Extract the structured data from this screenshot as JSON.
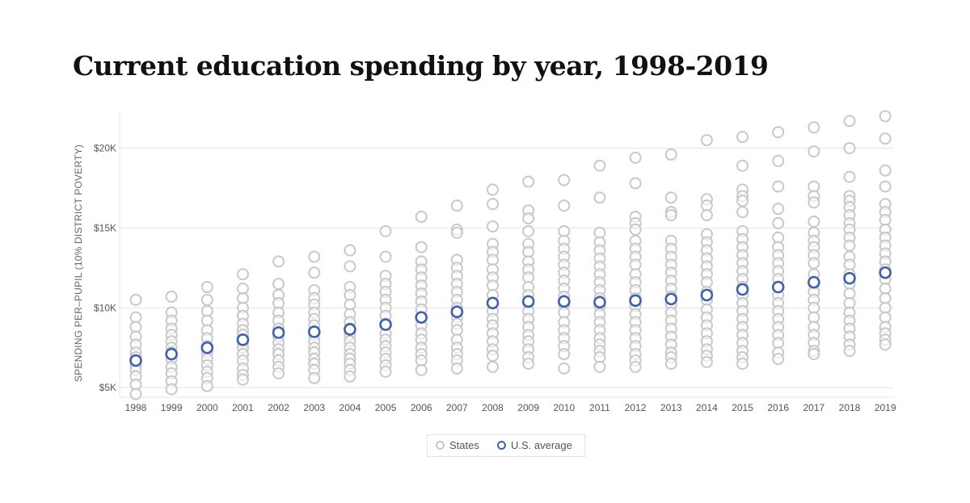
{
  "chart_data": {
    "type": "scatter",
    "title": "Current education spending by year, 1998-2019",
    "ylabel": "SPENDING PER–PUPIL (10% DISTRICT POVERTY)",
    "xlabel": "",
    "x": [
      "1998",
      "1999",
      "2000",
      "2001",
      "2002",
      "2003",
      "2004",
      "2005",
      "2006",
      "2007",
      "2008",
      "2009",
      "2010",
      "2011",
      "2012",
      "2013",
      "2014",
      "2015",
      "2016",
      "2017",
      "2018",
      "2019"
    ],
    "y_ticks": [
      {
        "value": 5000,
        "label": "$5K"
      },
      {
        "value": 10000,
        "label": "$10K"
      },
      {
        "value": 15000,
        "label": "$15K"
      },
      {
        "value": 20000,
        "label": "$20K"
      }
    ],
    "ylim": [
      4400,
      22300
    ],
    "grid": true,
    "legend_position": "bottom-center",
    "colors": {
      "states": "#c8c8c8",
      "us_average": "#3f62b0",
      "grid": "#e4e4e4"
    },
    "series": [
      {
        "name": "U.S. average",
        "values": [
          6700,
          7100,
          7500,
          8000,
          8450,
          8500,
          8650,
          8950,
          9400,
          9750,
          10300,
          10400,
          10400,
          10350,
          10450,
          10550,
          10800,
          11150,
          11300,
          11600,
          11850,
          12200
        ]
      },
      {
        "name": "States",
        "values_by_year": [
          [
            10500,
            9400,
            8800,
            8200,
            7700,
            7200,
            6900,
            6400,
            6100,
            5700,
            5200,
            4600
          ],
          [
            10700,
            9700,
            9200,
            8700,
            8300,
            7900,
            7500,
            7200,
            6800,
            6300,
            5900,
            5400,
            4900
          ],
          [
            11300,
            10500,
            9800,
            9200,
            8600,
            8100,
            7600,
            7200,
            6800,
            6400,
            6000,
            5600,
            5100
          ],
          [
            12100,
            11200,
            10600,
            10000,
            9500,
            9000,
            8600,
            8300,
            7800,
            7500,
            7100,
            6700,
            6200,
            5800,
            5500
          ],
          [
            12900,
            11500,
            10800,
            10300,
            9700,
            9200,
            8700,
            8200,
            7800,
            7400,
            7100,
            6700,
            6300,
            5900
          ],
          [
            13200,
            12200,
            11100,
            10600,
            10200,
            9700,
            9300,
            8900,
            8300,
            7900,
            7500,
            7200,
            6800,
            6500,
            6100,
            5600
          ],
          [
            13600,
            12600,
            11300,
            10800,
            10200,
            9600,
            9100,
            8700,
            8300,
            7900,
            7500,
            7100,
            6800,
            6500,
            6100,
            5700
          ],
          [
            14800,
            13200,
            12000,
            11500,
            11000,
            10500,
            10000,
            9500,
            9000,
            8400,
            8000,
            7600,
            7200,
            6800,
            6400,
            6000
          ],
          [
            15700,
            13800,
            12900,
            12400,
            11900,
            11400,
            10900,
            10400,
            9900,
            9400,
            8900,
            8400,
            8000,
            7500,
            7100,
            6700,
            6100
          ],
          [
            16400,
            14900,
            14700,
            13000,
            12500,
            12000,
            11500,
            11000,
            10500,
            10000,
            9400,
            9000,
            8600,
            8000,
            7500,
            7100,
            6700,
            6200
          ],
          [
            17400,
            16500,
            15100,
            14000,
            13500,
            13000,
            12400,
            11900,
            11400,
            10800,
            10300,
            9800,
            9300,
            8900,
            8400,
            7900,
            7400,
            7000,
            6300
          ],
          [
            17900,
            16100,
            15600,
            14800,
            14000,
            13500,
            12900,
            12400,
            11900,
            11300,
            10800,
            10300,
            9800,
            9300,
            8800,
            8300,
            7900,
            7400,
            6900,
            6500
          ],
          [
            18000,
            16400,
            14800,
            14200,
            13700,
            13200,
            12700,
            12200,
            11700,
            11200,
            10700,
            10200,
            9700,
            9100,
            8600,
            8100,
            7600,
            7100,
            6200
          ],
          [
            18900,
            16900,
            14700,
            14100,
            13600,
            13100,
            12600,
            12100,
            11600,
            11100,
            10600,
            10100,
            9600,
            9100,
            8600,
            8100,
            7700,
            7300,
            6900,
            6300
          ],
          [
            19400,
            17800,
            15700,
            15300,
            14900,
            14200,
            13700,
            13200,
            12700,
            12100,
            11600,
            11100,
            10600,
            10100,
            9600,
            9100,
            8600,
            8100,
            7600,
            7100,
            6700,
            6300
          ],
          [
            19600,
            16900,
            16000,
            15800,
            14200,
            13700,
            13200,
            12700,
            12200,
            11700,
            11200,
            10700,
            10200,
            9700,
            9200,
            8700,
            8200,
            7700,
            7200,
            6900,
            6500
          ],
          [
            20500,
            16800,
            16400,
            15800,
            14600,
            14100,
            13600,
            13100,
            12600,
            12100,
            11600,
            11000,
            10500,
            9900,
            9400,
            8900,
            8400,
            7900,
            7400,
            7000,
            6600
          ],
          [
            20700,
            18900,
            17400,
            17000,
            16700,
            16000,
            14800,
            14300,
            13800,
            13300,
            12800,
            12300,
            11800,
            11300,
            10800,
            10300,
            9800,
            9300,
            8800,
            8300,
            7800,
            7300,
            6900,
            6500
          ],
          [
            21000,
            19200,
            17600,
            16200,
            15300,
            14400,
            13800,
            13300,
            12800,
            12300,
            11800,
            11300,
            10800,
            10300,
            9800,
            9300,
            8800,
            8300,
            7800,
            7200,
            6800
          ],
          [
            21300,
            19800,
            17600,
            17000,
            16600,
            15400,
            14700,
            14200,
            13800,
            13300,
            12800,
            12100,
            11500,
            11000,
            10500,
            10000,
            9400,
            8800,
            8300,
            7800,
            7300,
            7100
          ],
          [
            21700,
            20000,
            18200,
            17000,
            16700,
            16300,
            15800,
            15300,
            14900,
            14400,
            13900,
            13200,
            12700,
            12100,
            11500,
            10900,
            10300,
            9700,
            9200,
            8700,
            8200,
            7700,
            7300
          ],
          [
            22000,
            20600,
            18600,
            17600,
            16500,
            16000,
            15500,
            14900,
            14400,
            13900,
            13400,
            12900,
            12400,
            11800,
            11200,
            10600,
            10000,
            9400,
            8800,
            8400,
            8000,
            7700
          ]
        ]
      }
    ]
  },
  "legend": {
    "states_label": "States",
    "avg_label": "U.S. average"
  }
}
